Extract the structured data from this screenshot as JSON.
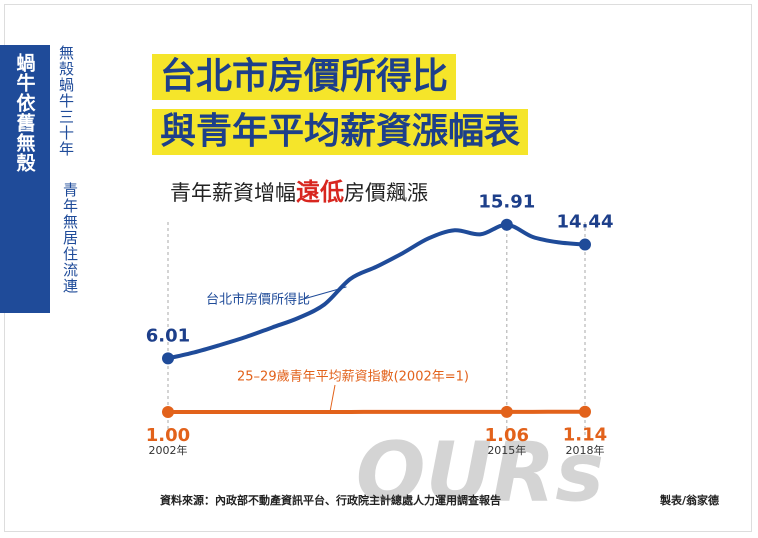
{
  "sidebar": {
    "title": "蝸牛依舊無殼",
    "tagline": [
      "無殼蝸牛三十年",
      "青年無居住流連"
    ]
  },
  "chart_data": {
    "type": "line",
    "title": [
      "台北市房價所得比",
      "與青年平均薪資漲幅表"
    ],
    "subtitle": [
      "青年薪資增幅",
      "遠低",
      "房價飆漲"
    ],
    "x": [
      2002,
      2003,
      2004,
      2005,
      2006,
      2007,
      2008,
      2009,
      2010,
      2011,
      2012,
      2013,
      2014,
      2015,
      2016,
      2017,
      2018
    ],
    "xlim": [
      2002,
      2018
    ],
    "xticks": [
      {
        "value": 2002,
        "label": "2002年"
      },
      {
        "value": 2015,
        "label": "2015年"
      },
      {
        "value": 2018,
        "label": "2018年"
      }
    ],
    "ylim": [
      5,
      17
    ],
    "y2lim": [
      0,
      10
    ],
    "series": [
      {
        "name": "台北市房價所得比",
        "color": "#1f4b99",
        "values": [
          6.01,
          6.45,
          7.0,
          7.6,
          8.3,
          9.0,
          10.0,
          11.9,
          12.8,
          13.8,
          14.9,
          15.5,
          15.2,
          15.91,
          15.0,
          14.6,
          14.44
        ],
        "value_labels": [
          "6.01",
          null,
          null,
          null,
          null,
          null,
          null,
          null,
          null,
          null,
          null,
          null,
          null,
          "15.91",
          null,
          null,
          "14.44"
        ]
      },
      {
        "name": "25–29歲青年平均薪資指數(2002年=1)",
        "color": "#e2621b",
        "axis": "y2",
        "values": [
          1.0,
          1.01,
          1.01,
          1.02,
          1.02,
          1.03,
          1.03,
          1.03,
          1.04,
          1.04,
          1.05,
          1.05,
          1.05,
          1.06,
          1.08,
          1.11,
          1.14
        ],
        "value_labels": [
          "1.00",
          null,
          null,
          null,
          null,
          null,
          null,
          null,
          null,
          null,
          null,
          null,
          null,
          "1.06",
          null,
          null,
          "1.14"
        ]
      }
    ]
  },
  "source": "資料來源：內政部不動產資訊平台、行政院主計總處人力運用調查報告",
  "credit": "製表/翁家德",
  "watermark": "OURs"
}
